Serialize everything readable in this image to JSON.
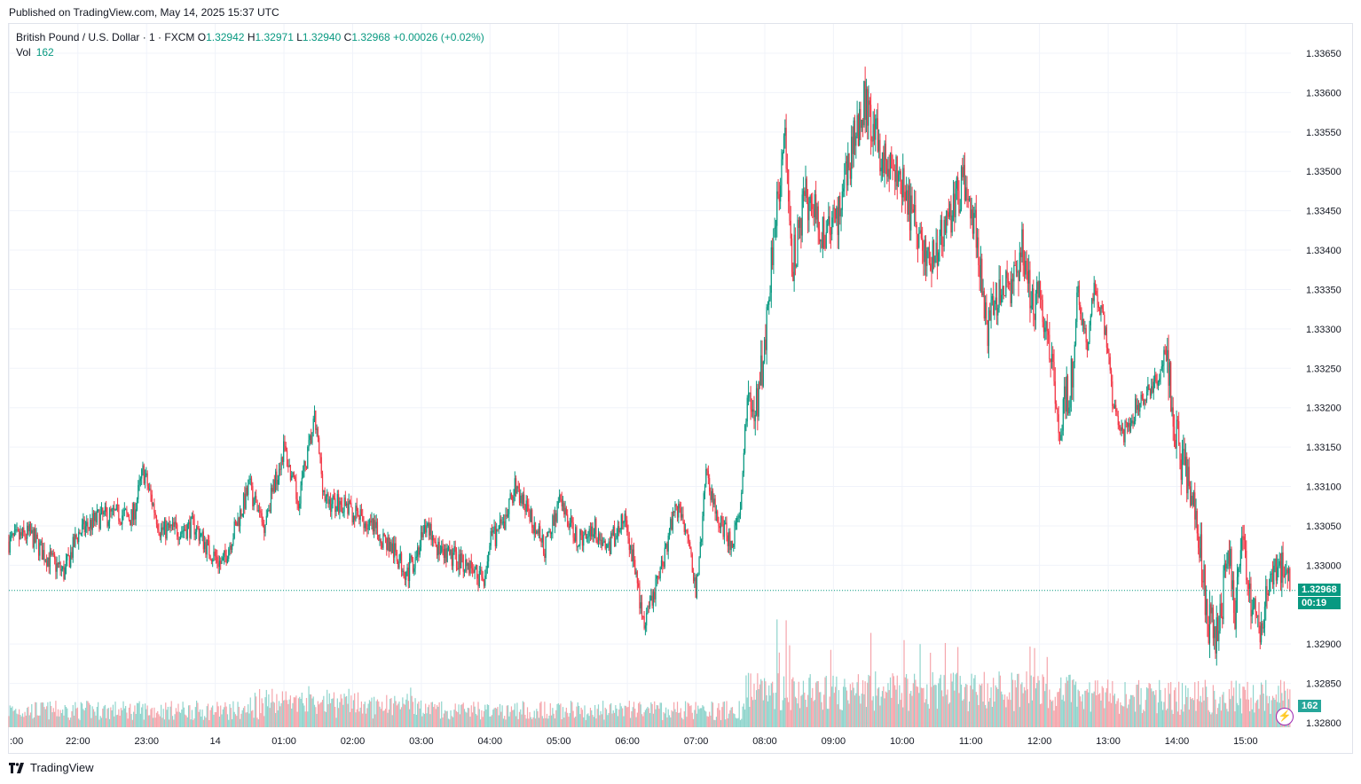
{
  "header": {
    "published": "Published on TradingView.com, May 14, 2025 15:37 UTC"
  },
  "legend": {
    "symbol": "British Pound / U.S. Dollar · 1 · FXCM",
    "open_label": "O",
    "open": "1.32942",
    "high_label": "H",
    "high": "1.32971",
    "low_label": "L",
    "low": "1.32940",
    "close_label": "C",
    "close": "1.32968",
    "change": "+0.00026 (+0.02%)",
    "vol_label": "Vol",
    "vol": "162"
  },
  "price_tag": {
    "price": "1.32968",
    "countdown": "00:19"
  },
  "vol_tag": "162",
  "footer": {
    "brand": "TradingView",
    "logo_icon": "tradingview-logo-icon"
  },
  "colors": {
    "up": "#089981",
    "down": "#f23645",
    "vol_up": "#8fd4cc",
    "vol_down": "#f5a5ab",
    "grid": "#f0f3fa"
  },
  "chart_data": {
    "type": "candlestick",
    "symbol": "GBPUSD",
    "interval": "1",
    "y_ticks": [
      "1.33650",
      "1.33600",
      "1.33550",
      "1.33500",
      "1.33450",
      "1.33400",
      "1.33350",
      "1.33300",
      "1.33250",
      "1.33200",
      "1.33150",
      "1.33100",
      "1.33050",
      "1.33000",
      "1.32900",
      "1.32850",
      "1.32800"
    ],
    "ylim": [
      1.328,
      1.3365
    ],
    "x_ticks": [
      ":00",
      "22:00",
      "23:00",
      "14",
      "01:00",
      "02:00",
      "03:00",
      "04:00",
      "05:00",
      "06:00",
      "07:00",
      "08:00",
      "09:00",
      "10:00",
      "11:00",
      "12:00",
      "13:00",
      "14:00",
      "15:00"
    ],
    "x_tick_hours": [
      21,
      22,
      23,
      24,
      25,
      26,
      27,
      28,
      29,
      30,
      31,
      32,
      33,
      34,
      35,
      36,
      37,
      38,
      39
    ],
    "x_range_hours": [
      20.995,
      39.66
    ],
    "last_price": 1.32968,
    "path": [
      [
        20.995,
        1.3303
      ],
      [
        21.3,
        1.3304
      ],
      [
        21.5,
        1.33015
      ],
      [
        21.8,
        1.3299
      ],
      [
        22.0,
        1.3304
      ],
      [
        22.3,
        1.3306
      ],
      [
        22.6,
        1.33065
      ],
      [
        22.8,
        1.3306
      ],
      [
        22.95,
        1.3312
      ],
      [
        23.2,
        1.33045
      ],
      [
        23.5,
        1.33045
      ],
      [
        23.7,
        1.3305
      ],
      [
        23.9,
        1.3302
      ],
      [
        24.1,
        1.33
      ],
      [
        24.5,
        1.331
      ],
      [
        24.7,
        1.3305
      ],
      [
        25.0,
        1.3315
      ],
      [
        25.2,
        1.3308
      ],
      [
        25.45,
        1.33185
      ],
      [
        25.6,
        1.3308
      ],
      [
        25.8,
        1.3308
      ],
      [
        26.1,
        1.3306
      ],
      [
        26.5,
        1.3303
      ],
      [
        26.8,
        1.3299
      ],
      [
        27.1,
        1.3305
      ],
      [
        27.3,
        1.3301
      ],
      [
        27.5,
        1.3301
      ],
      [
        27.7,
        1.33
      ],
      [
        27.9,
        1.3298
      ],
      [
        28.0,
        1.3303
      ],
      [
        28.2,
        1.3305
      ],
      [
        28.35,
        1.331
      ],
      [
        28.6,
        1.3306
      ],
      [
        28.8,
        1.3302
      ],
      [
        29.0,
        1.3308
      ],
      [
        29.3,
        1.3303
      ],
      [
        29.5,
        1.3305
      ],
      [
        29.7,
        1.3302
      ],
      [
        29.95,
        1.3306
      ],
      [
        30.1,
        1.33
      ],
      [
        30.25,
        1.3292
      ],
      [
        30.5,
        1.33
      ],
      [
        30.7,
        1.3308
      ],
      [
        30.9,
        1.3304
      ],
      [
        31.0,
        1.3296
      ],
      [
        31.15,
        1.3312
      ],
      [
        31.3,
        1.3306
      ],
      [
        31.5,
        1.3303
      ],
      [
        31.65,
        1.3306
      ],
      [
        31.75,
        1.3323
      ],
      [
        31.85,
        1.3318
      ],
      [
        32.0,
        1.3328
      ],
      [
        32.15,
        1.3345
      ],
      [
        32.3,
        1.3354
      ],
      [
        32.4,
        1.3338
      ],
      [
        32.6,
        1.3347
      ],
      [
        32.85,
        1.3342
      ],
      [
        33.05,
        1.3344
      ],
      [
        33.3,
        1.3354
      ],
      [
        33.45,
        1.3359
      ],
      [
        33.7,
        1.3352
      ],
      [
        34.0,
        1.3348
      ],
      [
        34.2,
        1.3343
      ],
      [
        34.4,
        1.3338
      ],
      [
        34.6,
        1.3342
      ],
      [
        34.9,
        1.3349
      ],
      [
        35.1,
        1.3341
      ],
      [
        35.25,
        1.333
      ],
      [
        35.4,
        1.3334
      ],
      [
        35.6,
        1.3336
      ],
      [
        35.75,
        1.334
      ],
      [
        35.9,
        1.3333
      ],
      [
        36.0,
        1.3334
      ],
      [
        36.2,
        1.3325
      ],
      [
        36.3,
        1.3318
      ],
      [
        36.5,
        1.3325
      ],
      [
        36.55,
        1.3335
      ],
      [
        36.7,
        1.3327
      ],
      [
        36.8,
        1.3336
      ],
      [
        36.95,
        1.333
      ],
      [
        37.05,
        1.3322
      ],
      [
        37.2,
        1.3316
      ],
      [
        37.4,
        1.332
      ],
      [
        37.6,
        1.3322
      ],
      [
        37.85,
        1.3326
      ],
      [
        38.0,
        1.3316
      ],
      [
        38.1,
        1.3312
      ],
      [
        38.25,
        1.3307
      ],
      [
        38.35,
        1.3301
      ],
      [
        38.45,
        1.3293
      ],
      [
        38.6,
        1.3291
      ],
      [
        38.75,
        1.3302
      ],
      [
        38.85,
        1.3294
      ],
      [
        38.95,
        1.3304
      ],
      [
        39.1,
        1.3295
      ],
      [
        39.2,
        1.3292
      ],
      [
        39.35,
        1.3298
      ],
      [
        39.5,
        1.33
      ],
      [
        39.66,
        1.32968
      ]
    ]
  }
}
